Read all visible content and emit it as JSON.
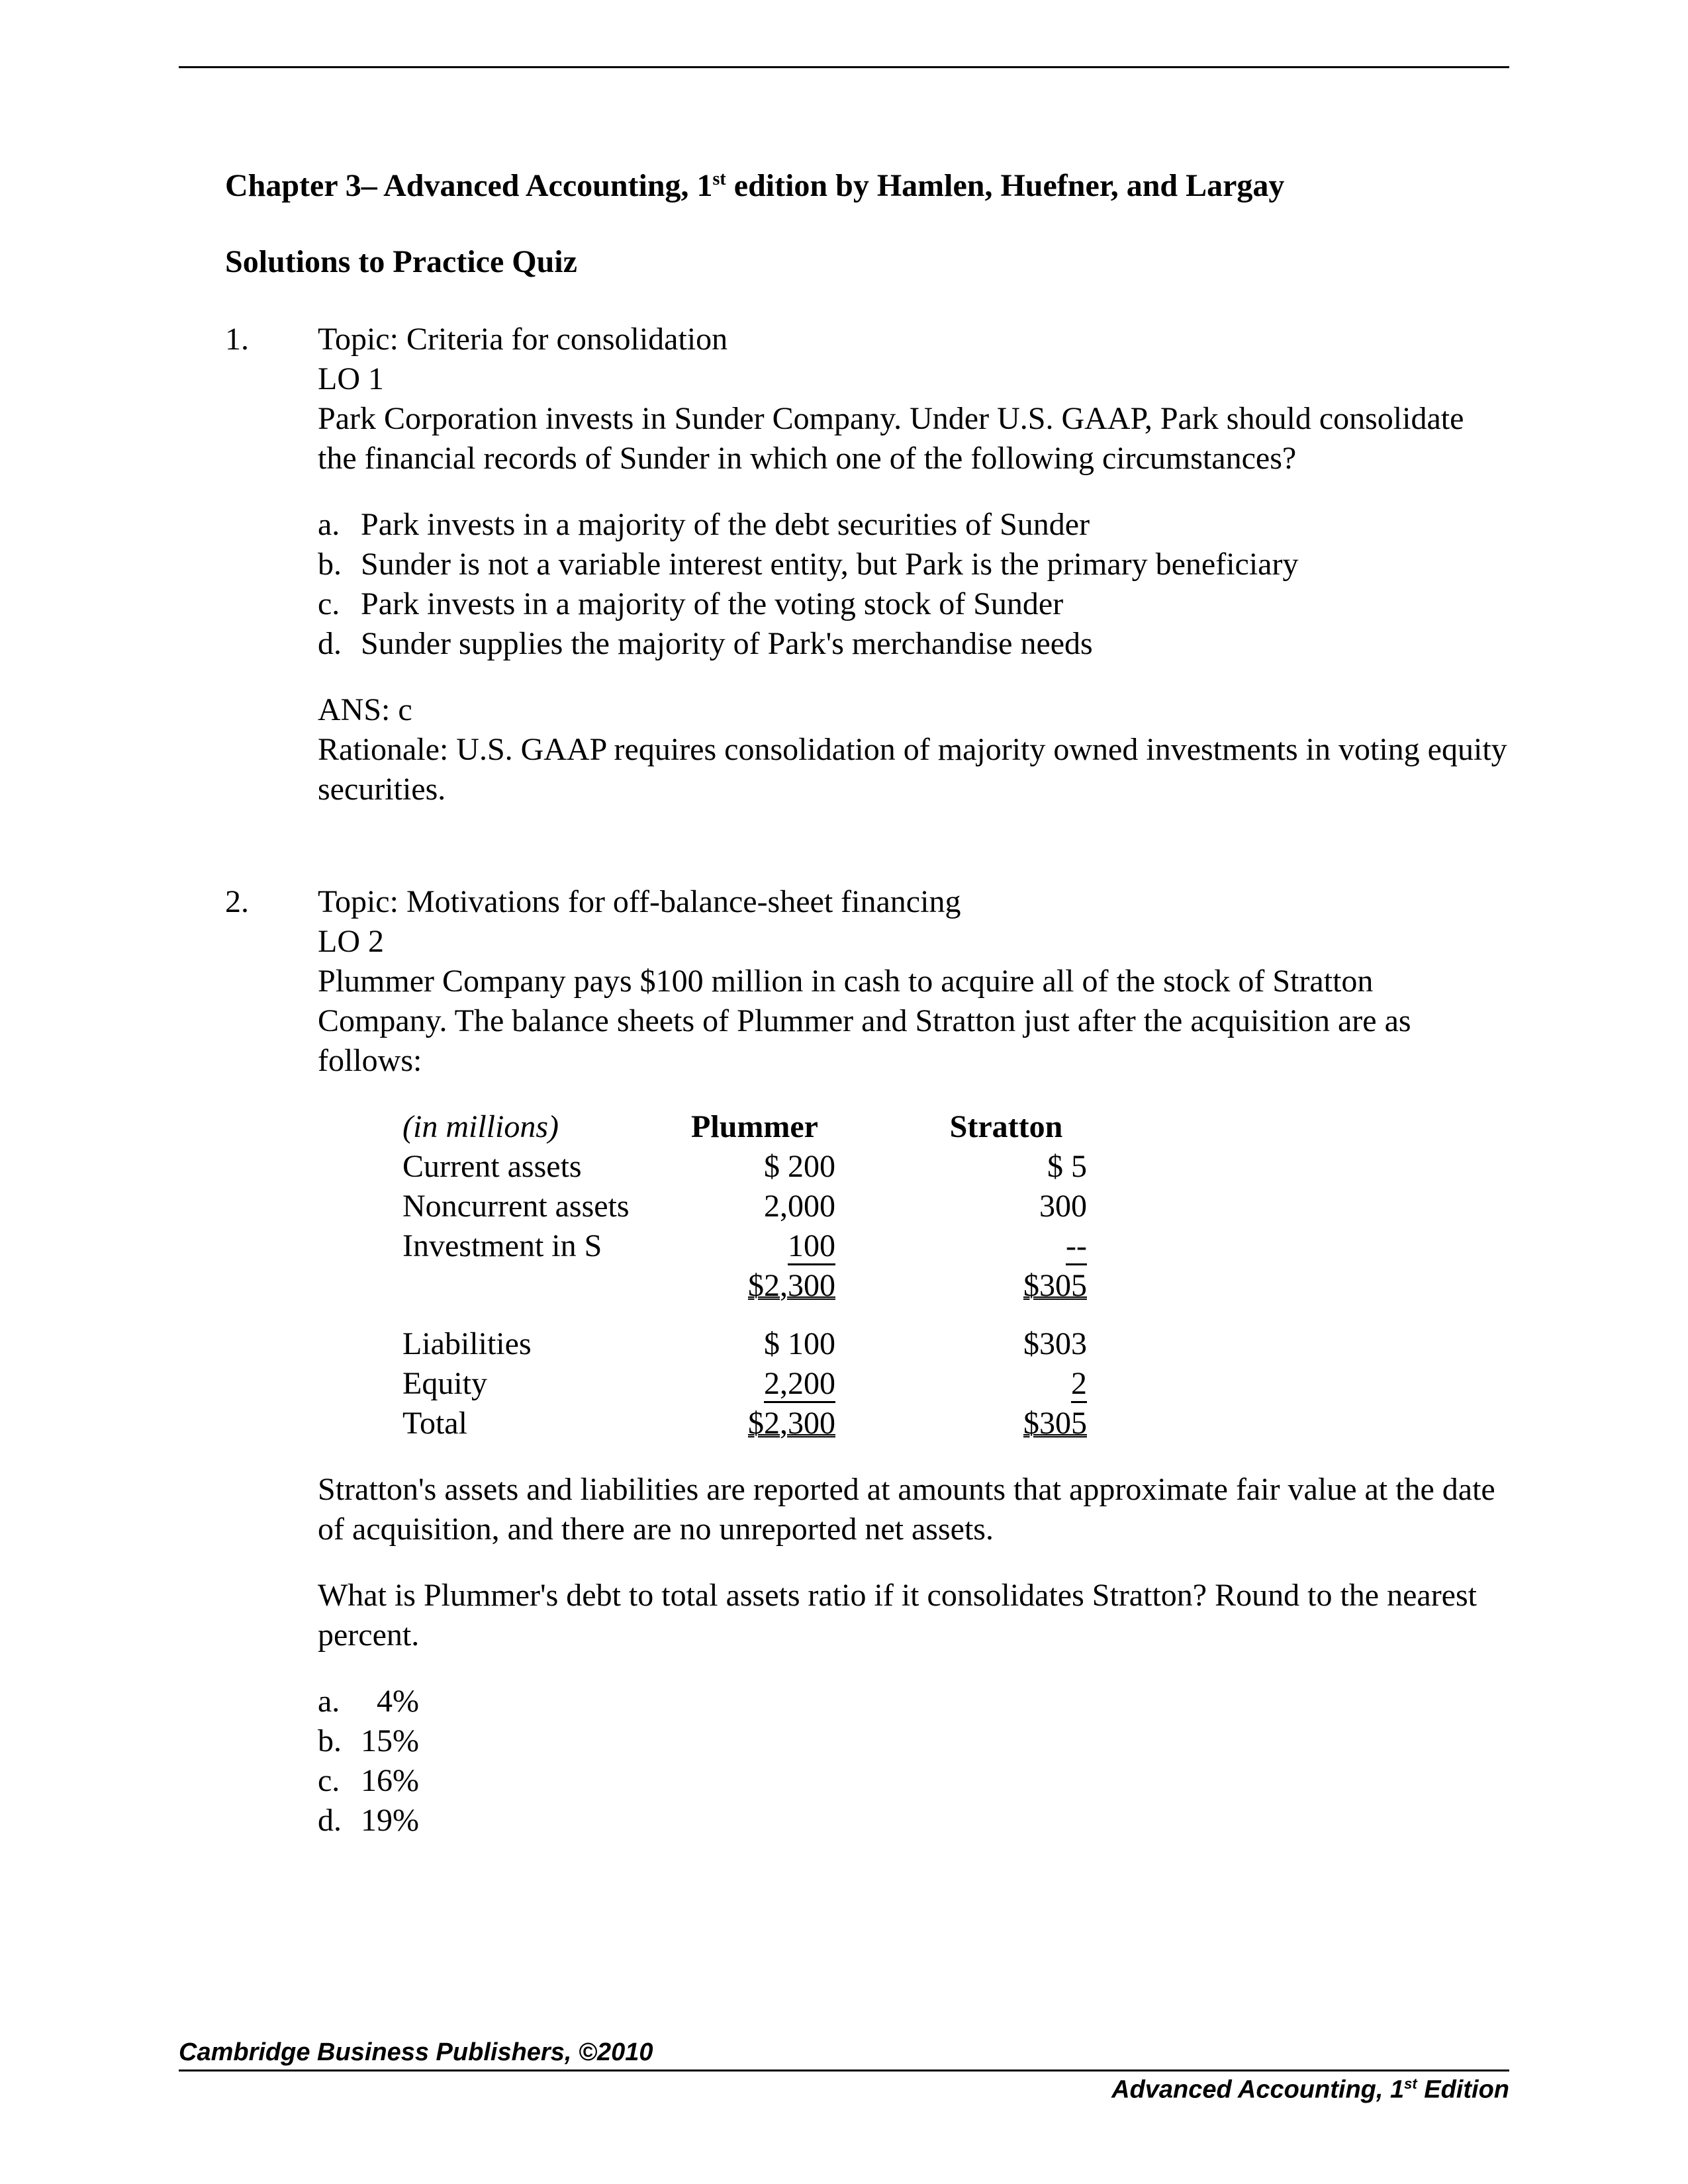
{
  "header": {
    "chapter_prefix": "Chapter 3– Advanced Accounting, 1",
    "chapter_sup": "st",
    "chapter_suffix": " edition by Hamlen, Huefner, and Largay",
    "subtitle": "Solutions to Practice Quiz"
  },
  "questions": [
    {
      "number": "1.",
      "topic": "Topic: Criteria for consolidation",
      "lo": "LO 1",
      "prompt": "Park Corporation invests in Sunder Company.  Under U.S. GAAP, Park should consolidate the financial records of Sunder in which one of the following circumstances?",
      "options": [
        {
          "letter": "a.",
          "text": "Park invests in a majority of the debt securities of Sunder"
        },
        {
          "letter": "b.",
          "text": "Sunder is not a variable interest entity, but Park is the primary beneficiary"
        },
        {
          "letter": "c.",
          "text": "Park invests in a majority of the voting stock of Sunder"
        },
        {
          "letter": "d.",
          "text": "Sunder supplies the majority of Park's merchandise needs"
        }
      ],
      "answer": "ANS:  c",
      "rationale": "Rationale:  U.S. GAAP requires consolidation of majority owned investments in voting equity securities."
    },
    {
      "number": "2.",
      "topic": "Topic: Motivations for off-balance-sheet financing",
      "lo": "LO 2",
      "prompt": "Plummer Company pays $100 million in cash to acquire all of the stock of Stratton Company.  The balance sheets of Plummer and Stratton just after the acquisition are as follows:",
      "table": {
        "unit_label": "(in millions)",
        "col1_head": "Plummer",
        "col2_head": "Stratton",
        "rows_top": [
          {
            "label": "Current assets",
            "c1": "$   200",
            "c2": "$     5"
          },
          {
            "label": "Noncurrent assets",
            "c1": "2,000",
            "c2": "300"
          },
          {
            "label": "Investment in S",
            "c1": "     100",
            "c2": "       --",
            "underline": true
          }
        ],
        "subtotal_top": {
          "c1": "$2,300",
          "c2": "$305"
        },
        "rows_bottom": [
          {
            "label": "Liabilities",
            "c1": "$   100",
            "c2": "$303"
          },
          {
            "label": "Equity",
            "c1": "  2,200",
            "c2": "       2",
            "underline": true
          },
          {
            "label": "Total",
            "c1": "$2,300",
            "c2": "$305",
            "double": true
          }
        ]
      },
      "post_table_p1": "Stratton's assets and liabilities are reported at amounts that approximate fair value at the date of acquisition, and there are no unreported net assets.",
      "post_table_p2": "What is Plummer's debt to total assets ratio if it consolidates Stratton?  Round to the nearest percent.",
      "options": [
        {
          "letter": "a.",
          "text": "  4%"
        },
        {
          "letter": "b.",
          "text": "15%"
        },
        {
          "letter": "c.",
          "text": "16%"
        },
        {
          "letter": "d.",
          "text": "19%"
        }
      ]
    }
  ],
  "footer": {
    "left": "Cambridge Business Publishers, ©2010",
    "right_prefix": "Advanced Accounting, 1",
    "right_sup": "st",
    "right_suffix": " Edition"
  }
}
